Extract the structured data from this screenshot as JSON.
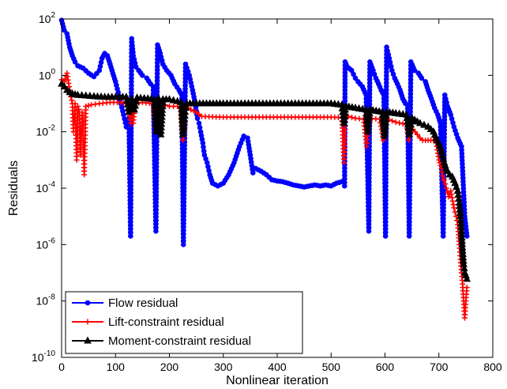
{
  "chart_data": {
    "type": "line",
    "xlabel": "Nonlinear iteration",
    "ylabel": "Residuals",
    "xlim": [
      0,
      800
    ],
    "ylim_log10": [
      -10,
      2
    ],
    "y_scale": "log",
    "x_ticks": [
      "0",
      "100",
      "200",
      "300",
      "400",
      "500",
      "600",
      "700",
      "800"
    ],
    "y_ticks": [
      {
        "base": "10",
        "exp": "2"
      },
      {
        "base": "10",
        "exp": "0"
      },
      {
        "base": "10",
        "exp": "-2"
      },
      {
        "base": "10",
        "exp": "-4"
      },
      {
        "base": "10",
        "exp": "-6"
      },
      {
        "base": "10",
        "exp": "-8"
      },
      {
        "base": "10",
        "exp": "-10"
      }
    ],
    "grid": false,
    "legend_position": "bottom-left",
    "series": [
      {
        "name": "Flow residual",
        "color": "#0000ff",
        "marker": "circle",
        "points": [
          [
            0,
            90
          ],
          [
            5,
            40
          ],
          [
            10,
            30
          ],
          [
            15,
            10
          ],
          [
            20,
            5
          ],
          [
            25,
            3
          ],
          [
            30,
            2.2
          ],
          [
            40,
            1.8
          ],
          [
            50,
            1.2
          ],
          [
            60,
            0.9
          ],
          [
            70,
            1.5
          ],
          [
            75,
            4
          ],
          [
            80,
            6
          ],
          [
            85,
            5
          ],
          [
            90,
            2.5
          ],
          [
            95,
            1.2
          ],
          [
            100,
            0.6
          ],
          [
            105,
            0.25
          ],
          [
            110,
            0.1
          ],
          [
            115,
            0.04
          ],
          [
            120,
            0.015
          ],
          [
            125,
            0.03
          ],
          [
            128,
            2e-06
          ],
          [
            130,
            20
          ],
          [
            133,
            5
          ],
          [
            138,
            2
          ],
          [
            143,
            1.5
          ],
          [
            150,
            1
          ],
          [
            158,
            0.8
          ],
          [
            165,
            0.5
          ],
          [
            170,
            0.4
          ],
          [
            175,
            3e-06
          ],
          [
            178,
            12
          ],
          [
            183,
            6
          ],
          [
            188,
            2.5
          ],
          [
            195,
            1.5
          ],
          [
            203,
            1
          ],
          [
            210,
            0.5
          ],
          [
            218,
            0.3
          ],
          [
            223,
            0.2
          ],
          [
            226,
            1e-06
          ],
          [
            230,
            2.5
          ],
          [
            237,
            1
          ],
          [
            243,
            0.3
          ],
          [
            248,
            0.1
          ],
          [
            252,
            0.03
          ],
          [
            255,
            0.02
          ],
          [
            258,
            0.01
          ],
          [
            262,
            0.004
          ],
          [
            265,
            0.0015
          ],
          [
            270,
            0.0008
          ],
          [
            275,
            0.0003
          ],
          [
            280,
            0.00015
          ],
          [
            290,
            0.00012
          ],
          [
            300,
            0.00015
          ],
          [
            310,
            0.0003
          ],
          [
            320,
            0.0008
          ],
          [
            330,
            0.003
          ],
          [
            338,
            0.007
          ],
          [
            345,
            0.006
          ],
          [
            350,
            0.0015
          ],
          [
            355,
            0.00035
          ],
          [
            360,
            0.0005
          ],
          [
            370,
            0.0004
          ],
          [
            380,
            0.0003
          ],
          [
            390,
            0.0002
          ],
          [
            400,
            0.00018
          ],
          [
            410,
            0.00017
          ],
          [
            420,
            0.00015
          ],
          [
            430,
            0.00013
          ],
          [
            440,
            0.00012
          ],
          [
            450,
            0.00011
          ],
          [
            460,
            0.00012
          ],
          [
            470,
            0.00013
          ],
          [
            480,
            0.00012
          ],
          [
            490,
            0.00013
          ],
          [
            500,
            0.00012
          ],
          [
            510,
            0.00015
          ],
          [
            520,
            0.00017
          ],
          [
            525,
            0.00012
          ],
          [
            526,
            3
          ],
          [
            530,
            2
          ],
          [
            538,
            1.5
          ],
          [
            545,
            0.8
          ],
          [
            550,
            0.6
          ],
          [
            558,
            0.4
          ],
          [
            565,
            0.2
          ],
          [
            570,
            3e-06
          ],
          [
            572,
            3
          ],
          [
            578,
            1.5
          ],
          [
            583,
            0.8
          ],
          [
            588,
            0.5
          ],
          [
            593,
            0.3
          ],
          [
            598,
            0.2
          ],
          [
            601,
            2e-06
          ],
          [
            603,
            10
          ],
          [
            608,
            4
          ],
          [
            613,
            1.5
          ],
          [
            618,
            0.8
          ],
          [
            623,
            0.5
          ],
          [
            628,
            0.3
          ],
          [
            633,
            0.15
          ],
          [
            638,
            0.1
          ],
          [
            642,
            0.09
          ],
          [
            645,
            2e-06
          ],
          [
            648,
            3
          ],
          [
            655,
            1.5
          ],
          [
            662,
            1.2
          ],
          [
            668,
            0.8
          ],
          [
            675,
            0.6
          ],
          [
            680,
            0.3
          ],
          [
            686,
            0.15
          ],
          [
            692,
            0.07
          ],
          [
            698,
            0.04
          ],
          [
            703,
            0.02
          ],
          [
            708,
            2e-06
          ],
          [
            711,
            0.2
          ],
          [
            716,
            0.08
          ],
          [
            722,
            0.04
          ],
          [
            728,
            0.015
          ],
          [
            735,
            0.006
          ],
          [
            742,
            0.003
          ],
          [
            748,
            1e-05
          ],
          [
            752,
            2e-06
          ]
        ]
      },
      {
        "name": "Lift-constraint residual",
        "color": "#ff0000",
        "marker": "plus",
        "points": [
          [
            0,
            0.7
          ],
          [
            5,
            0.6
          ],
          [
            10,
            1.2
          ],
          [
            15,
            0.3
          ],
          [
            20,
            0.1
          ],
          [
            22,
            0.01
          ],
          [
            25,
            0.1
          ],
          [
            28,
            0.001
          ],
          [
            30,
            0.08
          ],
          [
            33,
            0.05
          ],
          [
            35,
            0.0015
          ],
          [
            38,
            0.05
          ],
          [
            40,
            0.01
          ],
          [
            42,
            0.0003
          ],
          [
            45,
            0.08
          ],
          [
            55,
            0.09
          ],
          [
            70,
            0.1
          ],
          [
            90,
            0.11
          ],
          [
            110,
            0.11
          ],
          [
            120,
            0.1
          ],
          [
            125,
            0.05
          ],
          [
            128,
            0.02
          ],
          [
            130,
            0.1
          ],
          [
            133,
            0.02
          ],
          [
            136,
            0.1
          ],
          [
            150,
            0.11
          ],
          [
            170,
            0.1
          ],
          [
            173,
            0.02
          ],
          [
            176,
            0.01
          ],
          [
            179,
            0.1
          ],
          [
            182,
            0.01
          ],
          [
            185,
            0.1
          ],
          [
            200,
            0.08
          ],
          [
            215,
            0.08
          ],
          [
            222,
            0.06
          ],
          [
            225,
            0.005
          ],
          [
            228,
            0.01
          ],
          [
            231,
            0.08
          ],
          [
            240,
            0.06
          ],
          [
            250,
            0.05
          ],
          [
            260,
            0.035
          ],
          [
            300,
            0.033
          ],
          [
            400,
            0.033
          ],
          [
            500,
            0.033
          ],
          [
            520,
            0.032
          ],
          [
            524,
            0.0008
          ],
          [
            527,
            0.03
          ],
          [
            532,
            0.035
          ],
          [
            545,
            0.03
          ],
          [
            560,
            0.028
          ],
          [
            566,
            0.003
          ],
          [
            569,
            0.03
          ],
          [
            590,
            0.028
          ],
          [
            597,
            0.005
          ],
          [
            600,
            0.03
          ],
          [
            620,
            0.022
          ],
          [
            640,
            0.018
          ],
          [
            644,
            0.005
          ],
          [
            648,
            0.015
          ],
          [
            660,
            0.008
          ],
          [
            665,
            0.006
          ],
          [
            670,
            0.005
          ],
          [
            680,
            0.005
          ],
          [
            690,
            0.005
          ],
          [
            695,
            0.004
          ],
          [
            700,
            0.001
          ],
          [
            705,
            0.0005
          ],
          [
            708,
            0.0002
          ],
          [
            710,
            0.0002
          ],
          [
            714,
            0.0001
          ],
          [
            718,
            5e-05
          ],
          [
            722,
            8e-05
          ],
          [
            728,
            2e-05
          ],
          [
            732,
            1e-05
          ],
          [
            735,
            5e-06
          ],
          [
            738,
            1e-06
          ],
          [
            740,
            3e-07
          ],
          [
            742,
            1e-07
          ],
          [
            744,
            4e-08
          ],
          [
            746,
            1e-08
          ],
          [
            748,
            2.5e-09
          ],
          [
            750,
            1e-08
          ],
          [
            752,
            3e-08
          ]
        ]
      },
      {
        "name": "Moment-constraint residual",
        "color": "#000000",
        "marker": "triangle",
        "points": [
          [
            0,
            0.5
          ],
          [
            5,
            0.4
          ],
          [
            10,
            0.3
          ],
          [
            15,
            0.25
          ],
          [
            20,
            0.22
          ],
          [
            30,
            0.2
          ],
          [
            45,
            0.19
          ],
          [
            60,
            0.18
          ],
          [
            80,
            0.17
          ],
          [
            100,
            0.17
          ],
          [
            120,
            0.17
          ],
          [
            125,
            0.05
          ],
          [
            130,
            0.15
          ],
          [
            135,
            0.06
          ],
          [
            140,
            0.16
          ],
          [
            160,
            0.15
          ],
          [
            172,
            0.14
          ],
          [
            176,
            0.01
          ],
          [
            180,
            0.15
          ],
          [
            184,
            0.008
          ],
          [
            188,
            0.14
          ],
          [
            200,
            0.14
          ],
          [
            215,
            0.12
          ],
          [
            222,
            0.11
          ],
          [
            225,
            0.008
          ],
          [
            229,
            0.05
          ],
          [
            232,
            0.1
          ],
          [
            250,
            0.1
          ],
          [
            300,
            0.1
          ],
          [
            400,
            0.1
          ],
          [
            500,
            0.1
          ],
          [
            520,
            0.09
          ],
          [
            524,
            0.02
          ],
          [
            527,
            0.08
          ],
          [
            545,
            0.07
          ],
          [
            565,
            0.06
          ],
          [
            568,
            0.01
          ],
          [
            572,
            0.06
          ],
          [
            595,
            0.05
          ],
          [
            599,
            0.007
          ],
          [
            603,
            0.05
          ],
          [
            620,
            0.045
          ],
          [
            640,
            0.04
          ],
          [
            645,
            0.008
          ],
          [
            650,
            0.03
          ],
          [
            665,
            0.02
          ],
          [
            680,
            0.015
          ],
          [
            690,
            0.01
          ],
          [
            695,
            0.006
          ],
          [
            700,
            0.004
          ],
          [
            705,
            0.002
          ],
          [
            710,
            0.0008
          ],
          [
            715,
            0.0004
          ],
          [
            720,
            0.0003
          ],
          [
            725,
            0.00025
          ],
          [
            730,
            0.00015
          ],
          [
            735,
            8e-05
          ],
          [
            738,
            3e-05
          ],
          [
            740,
            1e-05
          ],
          [
            742,
            3e-06
          ],
          [
            744,
            6e-07
          ],
          [
            746,
            2e-07
          ],
          [
            748,
            1e-07
          ],
          [
            750,
            8e-08
          ],
          [
            752,
            6e-08
          ]
        ]
      }
    ]
  }
}
